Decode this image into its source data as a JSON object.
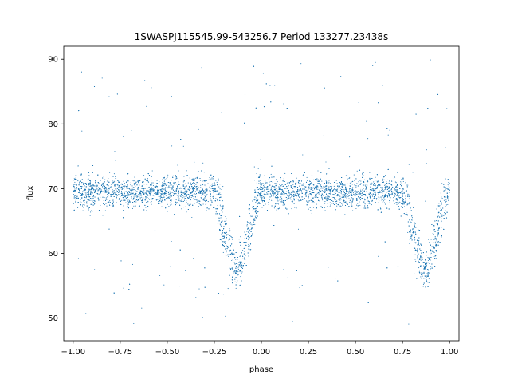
{
  "chart_data": {
    "type": "scatter",
    "title": "1SWASPJ115545.99-543256.7 Period 133277.23438s",
    "xlabel": "phase",
    "ylabel": "flux",
    "xlim": [
      -1.05,
      1.05
    ],
    "ylim": [
      46.5,
      92.0
    ],
    "x_ticks": [
      -1.0,
      -0.75,
      -0.5,
      -0.25,
      0.0,
      0.25,
      0.5,
      0.75,
      1.0
    ],
    "x_tick_labels": [
      "−1.00",
      "−0.75",
      "−0.50",
      "−0.25",
      "0.00",
      "0.25",
      "0.50",
      "0.75",
      "1.00"
    ],
    "y_ticks": [
      50,
      60,
      70,
      80,
      90
    ],
    "y_tick_labels": [
      "50",
      "60",
      "70",
      "80",
      "90"
    ],
    "marker_color": "#1f77b4",
    "grid": false,
    "legend": "none",
    "light_curve_envelope": {
      "baseline_flux": 69.5,
      "baseline_scatter": 1.2,
      "eclipse_centers": [
        -0.13,
        0.87
      ],
      "eclipse_min_flux": 56.0,
      "eclipse_half_width": 0.11,
      "outlier_range": [
        49.0,
        90.0
      ]
    },
    "approx_point_count": 9000
  }
}
